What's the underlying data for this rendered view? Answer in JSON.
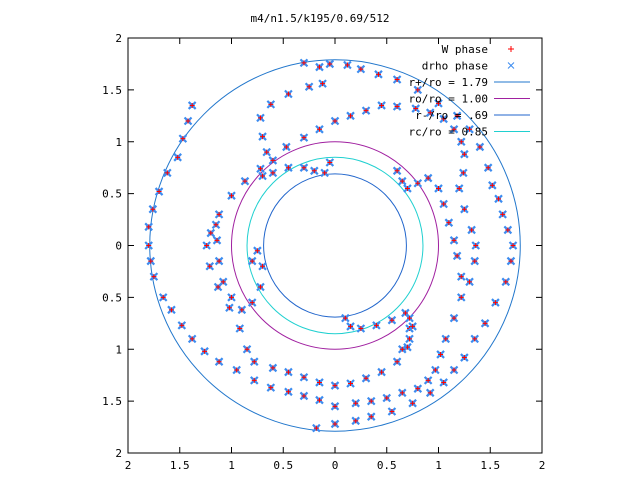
{
  "chart_data": {
    "type": "scatter",
    "title": "m4/n1.5/k195/0.69/512",
    "xlabel": "",
    "ylabel": "",
    "xlim": [
      -2,
      2
    ],
    "ylim": [
      -2,
      2
    ],
    "grid": false,
    "legend_position": "top-right",
    "x_ticks": [
      {
        "value": -2,
        "label": "2"
      },
      {
        "value": -1.5,
        "label": "1.5"
      },
      {
        "value": -1,
        "label": "1"
      },
      {
        "value": -0.5,
        "label": "0.5"
      },
      {
        "value": 0,
        "label": "0"
      },
      {
        "value": 0.5,
        "label": "0.5"
      },
      {
        "value": 1,
        "label": "1"
      },
      {
        "value": 1.5,
        "label": "1.5"
      },
      {
        "value": 2,
        "label": "2"
      }
    ],
    "y_ticks": [
      {
        "value": 2,
        "label": "2"
      },
      {
        "value": 1.5,
        "label": "1.5"
      },
      {
        "value": 1,
        "label": "1"
      },
      {
        "value": 0.5,
        "label": "0.5"
      },
      {
        "value": 0,
        "label": "0"
      },
      {
        "value": -0.5,
        "label": "0.5"
      },
      {
        "value": -1,
        "label": "1"
      },
      {
        "value": -1.5,
        "label": "1.5"
      },
      {
        "value": -2,
        "label": "2"
      }
    ],
    "series": [
      {
        "name": "W phase",
        "marker": "plus",
        "color": "#ff0000"
      },
      {
        "name": "drho phase",
        "marker": "cross",
        "color": "#3c8cf0"
      },
      {
        "name": "r+/ro = 1.79",
        "type": "circle",
        "radius": 1.79,
        "color": "#2277cc"
      },
      {
        "name": "ro/ro = 1.00",
        "type": "circle",
        "radius": 1.0,
        "color": "#a020a0"
      },
      {
        "name": "r-/ro = .69",
        "type": "circle",
        "radius": 0.69,
        "color": "#2266cc"
      },
      {
        "name": "rc/ro = 0.85",
        "type": "circle",
        "radius": 0.85,
        "color": "#20d0d0"
      }
    ],
    "point_arms": [
      {
        "arm": 1,
        "points": [
          [
            -0.12,
            1.56
          ],
          [
            -0.25,
            1.53
          ],
          [
            -0.45,
            1.46
          ],
          [
            -0.62,
            1.36
          ],
          [
            -0.72,
            1.23
          ],
          [
            -0.7,
            1.05
          ],
          [
            -0.66,
            0.9
          ],
          [
            -0.72,
            0.74
          ],
          [
            -0.87,
            0.62
          ],
          [
            -1.0,
            0.48
          ],
          [
            -1.12,
            0.3
          ],
          [
            -1.2,
            0.12
          ],
          [
            -1.24,
            0.0
          ],
          [
            -1.21,
            -0.2
          ],
          [
            -1.13,
            -0.4
          ],
          [
            -1.02,
            -0.6
          ],
          [
            -0.92,
            -0.8
          ],
          [
            -0.85,
            -1.0
          ],
          [
            -0.78,
            -1.12
          ],
          [
            -0.6,
            -1.18
          ],
          [
            -0.45,
            -1.22
          ],
          [
            -0.3,
            -1.27
          ],
          [
            -0.15,
            -1.32
          ],
          [
            0.0,
            -1.35
          ],
          [
            0.15,
            -1.33
          ],
          [
            0.3,
            -1.28
          ],
          [
            0.45,
            -1.22
          ],
          [
            0.6,
            -1.12
          ],
          [
            0.7,
            -0.98
          ],
          [
            0.72,
            -0.8
          ],
          [
            0.72,
            -0.7
          ]
        ]
      },
      {
        "arm": 2,
        "points": [
          [
            -0.7,
            0.67
          ],
          [
            -0.6,
            0.82
          ],
          [
            -0.47,
            0.95
          ],
          [
            -0.3,
            1.04
          ],
          [
            -0.15,
            1.12
          ],
          [
            0.0,
            1.2
          ],
          [
            0.15,
            1.25
          ],
          [
            0.3,
            1.3
          ],
          [
            0.45,
            1.35
          ],
          [
            0.6,
            1.34
          ],
          [
            0.78,
            1.32
          ],
          [
            0.92,
            1.28
          ],
          [
            1.05,
            1.22
          ],
          [
            1.15,
            1.12
          ],
          [
            1.22,
            1.0
          ],
          [
            1.25,
            0.88
          ],
          [
            1.24,
            0.7
          ],
          [
            1.2,
            0.55
          ],
          [
            1.25,
            0.35
          ],
          [
            1.32,
            0.15
          ],
          [
            1.36,
            0.0
          ],
          [
            1.35,
            -0.15
          ],
          [
            1.3,
            -0.35
          ],
          [
            1.22,
            -0.5
          ],
          [
            1.15,
            -0.7
          ],
          [
            1.07,
            -0.9
          ],
          [
            1.02,
            -1.05
          ],
          [
            0.97,
            -1.2
          ],
          [
            0.9,
            -1.3
          ],
          [
            0.8,
            -1.38
          ],
          [
            0.65,
            -1.42
          ],
          [
            0.5,
            -1.47
          ],
          [
            0.35,
            -1.5
          ],
          [
            0.2,
            -1.52
          ],
          [
            0.0,
            -1.55
          ]
        ]
      },
      {
        "arm": 3,
        "points": [
          [
            -1.38,
            1.35
          ],
          [
            -1.42,
            1.2
          ],
          [
            -1.47,
            1.03
          ],
          [
            -1.52,
            0.85
          ],
          [
            -1.62,
            0.7
          ],
          [
            -1.7,
            0.52
          ],
          [
            -1.76,
            0.35
          ],
          [
            -1.8,
            0.18
          ],
          [
            -1.8,
            0.0
          ],
          [
            -1.78,
            -0.15
          ],
          [
            -1.75,
            -0.3
          ],
          [
            -1.66,
            -0.5
          ],
          [
            -1.58,
            -0.62
          ],
          [
            -1.48,
            -0.77
          ],
          [
            -1.38,
            -0.9
          ],
          [
            -1.26,
            -1.02
          ],
          [
            -1.12,
            -1.12
          ],
          [
            -0.95,
            -1.2
          ],
          [
            -0.78,
            -1.3
          ],
          [
            -0.62,
            -1.37
          ],
          [
            -0.45,
            -1.41
          ],
          [
            -0.3,
            -1.45
          ],
          [
            -0.15,
            -1.49
          ]
        ]
      },
      {
        "arm": 4,
        "points": [
          [
            -0.3,
            1.76
          ],
          [
            -0.15,
            1.72
          ],
          [
            -0.05,
            1.75
          ],
          [
            0.12,
            1.74
          ],
          [
            0.25,
            1.7
          ],
          [
            0.42,
            1.65
          ],
          [
            0.6,
            1.6
          ],
          [
            0.8,
            1.5
          ],
          [
            1.0,
            1.37
          ],
          [
            1.18,
            1.25
          ],
          [
            1.3,
            1.12
          ],
          [
            1.4,
            0.95
          ],
          [
            1.48,
            0.75
          ],
          [
            1.52,
            0.58
          ],
          [
            1.58,
            0.45
          ],
          [
            1.62,
            0.3
          ],
          [
            1.67,
            0.15
          ],
          [
            1.72,
            0.0
          ],
          [
            1.7,
            -0.15
          ],
          [
            1.65,
            -0.35
          ],
          [
            1.55,
            -0.55
          ],
          [
            1.45,
            -0.75
          ],
          [
            1.35,
            -0.9
          ],
          [
            1.25,
            -1.08
          ],
          [
            1.15,
            -1.2
          ],
          [
            1.05,
            -1.32
          ],
          [
            0.92,
            -1.42
          ],
          [
            0.75,
            -1.52
          ],
          [
            0.55,
            -1.6
          ],
          [
            0.35,
            -1.65
          ],
          [
            0.2,
            -1.69
          ],
          [
            0.0,
            -1.72
          ],
          [
            -0.18,
            -1.76
          ]
        ]
      },
      {
        "arm": 5,
        "points": [
          [
            -0.05,
            0.8
          ],
          [
            -0.1,
            0.7
          ],
          [
            -0.2,
            0.72
          ],
          [
            -0.3,
            0.75
          ],
          [
            -0.45,
            0.75
          ],
          [
            -0.6,
            0.7
          ]
        ]
      },
      {
        "arm": 6,
        "points": [
          [
            0.6,
            0.72
          ],
          [
            0.65,
            0.62
          ],
          [
            0.7,
            0.55
          ],
          [
            0.8,
            0.6
          ],
          [
            0.9,
            0.65
          ],
          [
            1.0,
            0.55
          ],
          [
            1.05,
            0.4
          ],
          [
            1.1,
            0.22
          ],
          [
            1.15,
            0.05
          ],
          [
            1.18,
            -0.1
          ],
          [
            1.22,
            -0.3
          ]
        ]
      },
      {
        "arm": 7,
        "points": [
          [
            -0.8,
            -0.15
          ],
          [
            -0.75,
            -0.05
          ],
          [
            -0.7,
            -0.2
          ],
          [
            -0.72,
            -0.4
          ],
          [
            -0.8,
            -0.55
          ],
          [
            -0.9,
            -0.62
          ],
          [
            -1.0,
            -0.5
          ],
          [
            -1.08,
            -0.35
          ],
          [
            -1.12,
            -0.15
          ],
          [
            -1.14,
            0.05
          ],
          [
            -1.15,
            0.2
          ]
        ]
      },
      {
        "arm": 8,
        "points": [
          [
            0.1,
            -0.7
          ],
          [
            0.15,
            -0.78
          ],
          [
            0.25,
            -0.8
          ],
          [
            0.4,
            -0.77
          ],
          [
            0.55,
            -0.72
          ],
          [
            0.68,
            -0.65
          ],
          [
            0.75,
            -0.78
          ],
          [
            0.72,
            -0.9
          ],
          [
            0.65,
            -1.0
          ]
        ]
      }
    ]
  }
}
